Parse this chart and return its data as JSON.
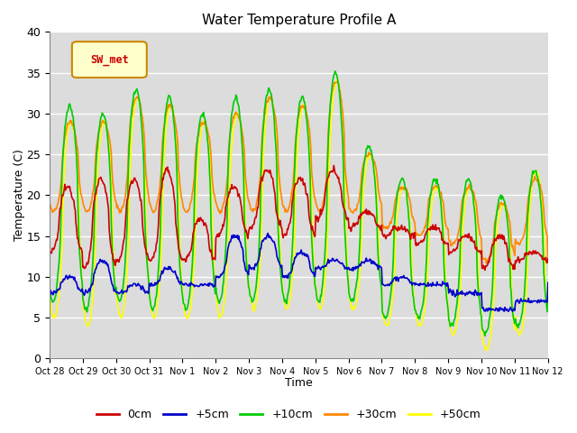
{
  "title": "Water Temperature Profile A",
  "xlabel": "Time",
  "ylabel": "Temperature (C)",
  "ylim": [
    0,
    40
  ],
  "background_color": "#dcdcdc",
  "legend_label": "SW_met",
  "series": {
    "0cm": {
      "color": "#cc0000",
      "lw": 1.2
    },
    "+5cm": {
      "color": "#0000cc",
      "lw": 1.2
    },
    "+10cm": {
      "color": "#00cc00",
      "lw": 1.2
    },
    "+30cm": {
      "color": "#ff8800",
      "lw": 1.2
    },
    "+50cm": {
      "color": "#ffff00",
      "lw": 1.2
    }
  },
  "xtick_labels": [
    "Oct 28",
    "Oct 29",
    "Oct 30",
    "Oct 31",
    "Nov 1",
    "Nov 2",
    "Nov 3",
    "Nov 4",
    "Nov 5",
    "Nov 6",
    "Nov 7",
    "Nov 8",
    "Nov 9",
    "Nov 10",
    "Nov 11",
    "Nov 12"
  ],
  "peak_heights_0cm": [
    21,
    22,
    22,
    23,
    17,
    21,
    23,
    22,
    23,
    18,
    16,
    16,
    15,
    15,
    13,
    13
  ],
  "peak_heights_5cm": [
    10,
    12,
    9,
    11,
    9,
    15,
    15,
    13,
    12,
    12,
    10,
    9,
    8,
    6,
    7,
    11
  ],
  "peak_heights_10cm": [
    31,
    30,
    33,
    32,
    30,
    32,
    33,
    32,
    35,
    26,
    22,
    22,
    22,
    20,
    23,
    13
  ],
  "peak_heights_30cm": [
    29,
    29,
    32,
    31,
    29,
    30,
    32,
    31,
    34,
    25,
    21,
    21,
    21,
    19,
    22,
    12
  ],
  "peak_heights_50cm": [
    29,
    29,
    32,
    31,
    29,
    30,
    32,
    31,
    34,
    25,
    21,
    21,
    21,
    19,
    23,
    12
  ],
  "trough_0cm": [
    13,
    11,
    12,
    12,
    12,
    15,
    16,
    15,
    17,
    16,
    15,
    14,
    13,
    11,
    12,
    12
  ],
  "trough_5cm": [
    8,
    8,
    8,
    9,
    9,
    10,
    11,
    10,
    11,
    11,
    9,
    9,
    8,
    6,
    7,
    9
  ],
  "trough_10cm": [
    7,
    6,
    7,
    6,
    6,
    7,
    7,
    7,
    7,
    7,
    5,
    5,
    4,
    3,
    4,
    7
  ],
  "trough_30cm": [
    18,
    18,
    18,
    18,
    18,
    18,
    18,
    18,
    18,
    18,
    16,
    15,
    14,
    12,
    14,
    12
  ],
  "trough_50cm": [
    5,
    4,
    5,
    5,
    5,
    5,
    6,
    6,
    6,
    6,
    4,
    4,
    3,
    1,
    3,
    6
  ]
}
